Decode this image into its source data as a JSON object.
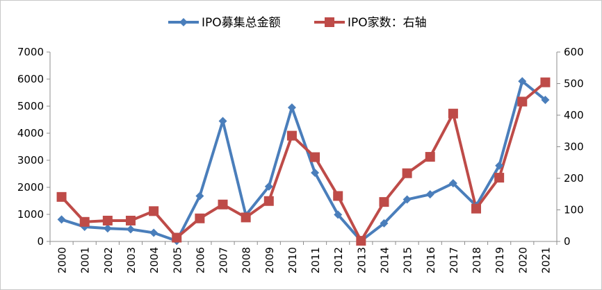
{
  "chart_data": {
    "type": "line",
    "title": "",
    "xlabel": "",
    "categories": [
      "2000",
      "2001",
      "2002",
      "2003",
      "2004",
      "2005",
      "2006",
      "2007",
      "2008",
      "2009",
      "2010",
      "2011",
      "2012",
      "2013",
      "2014",
      "2015",
      "2016",
      "2017",
      "2018",
      "2019",
      "2020",
      "2021"
    ],
    "y_left": {
      "ylim": [
        0,
        7000
      ],
      "ticks": [
        0,
        1000,
        2000,
        3000,
        4000,
        5000,
        6000,
        7000
      ]
    },
    "y_right": {
      "ylim": [
        0,
        600
      ],
      "ticks": [
        0,
        100,
        200,
        300,
        400,
        500,
        600
      ]
    },
    "grid": false,
    "legend_position": "top",
    "series": [
      {
        "name": "IPO募集总金额",
        "axis": "left",
        "color": "#4a7ebb",
        "marker": "diamond",
        "values": [
          810,
          540,
          480,
          450,
          320,
          20,
          1680,
          4450,
          970,
          2030,
          4950,
          2540,
          990,
          20,
          670,
          1550,
          1740,
          2150,
          1320,
          2800,
          5920,
          5230
        ]
      },
      {
        "name": "IPO家数：右轴",
        "axis": "right",
        "color": "#be4b48",
        "marker": "square",
        "values": [
          141,
          62,
          66,
          66,
          96,
          12,
          73,
          117,
          76,
          128,
          335,
          267,
          144,
          2,
          125,
          216,
          268,
          405,
          104,
          202,
          443,
          504
        ]
      }
    ]
  }
}
